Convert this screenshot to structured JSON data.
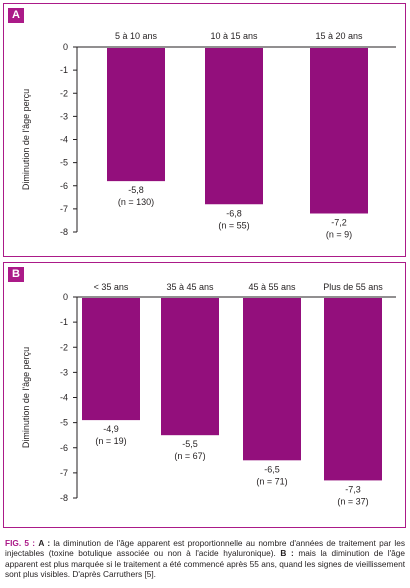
{
  "colors": {
    "accent": "#ab1a88",
    "bar": "#930f7c",
    "axis": "#231f20"
  },
  "panels": [
    {
      "label": "A"
    },
    {
      "label": "B"
    }
  ],
  "chart_data": [
    {
      "type": "bar",
      "panel": "A",
      "categories": [
        "5 à 10 ans",
        "10 à 15 ans",
        "15 à 20 ans"
      ],
      "values": [
        -5.8,
        -6.8,
        -7.2
      ],
      "value_labels": [
        "-5,8",
        "-6,8",
        "-7,2"
      ],
      "n_labels": [
        "(n = 130)",
        "(n = 55)",
        "(n = 9)"
      ],
      "ylabel": "Diminution de l'âge perçu",
      "ylim": [
        -8,
        0
      ],
      "yticks": [
        "0",
        "-1",
        "-2",
        "-3",
        "-4",
        "-5",
        "-6",
        "-7",
        "-8"
      ],
      "grid": false
    },
    {
      "type": "bar",
      "panel": "B",
      "categories": [
        "< 35 ans",
        "35 à 45 ans",
        "45 à 55 ans",
        "Plus de 55 ans"
      ],
      "values": [
        -4.9,
        -5.5,
        -6.5,
        -7.3
      ],
      "value_labels": [
        "-4,9",
        "-5,5",
        "-6,5",
        "-7,3"
      ],
      "n_labels": [
        "(n = 19)",
        "(n = 67)",
        "(n = 71)",
        "(n = 37)"
      ],
      "ylabel": "Diminution de l'âge perçu",
      "ylim": [
        -8,
        0
      ],
      "yticks": [
        "0",
        "-1",
        "-2",
        "-3",
        "-4",
        "-5",
        "-6",
        "-7",
        "-8"
      ],
      "grid": false
    }
  ],
  "caption": {
    "lead": "FIG. 5 :",
    "a_label": "A :",
    "a_text": " la diminution de l'âge apparent est proportionnelle au nombre d'années de traitement par les injectables (toxine botulique associée ou non à l'acide hyaluronique). ",
    "b_label": "B :",
    "b_text": " mais la diminution de l'âge apparent est plus marquée si le traitement a été commencé après 55 ans, quand les signes de vieillissement sont plus visibles. D'après Carruthers [5]."
  }
}
